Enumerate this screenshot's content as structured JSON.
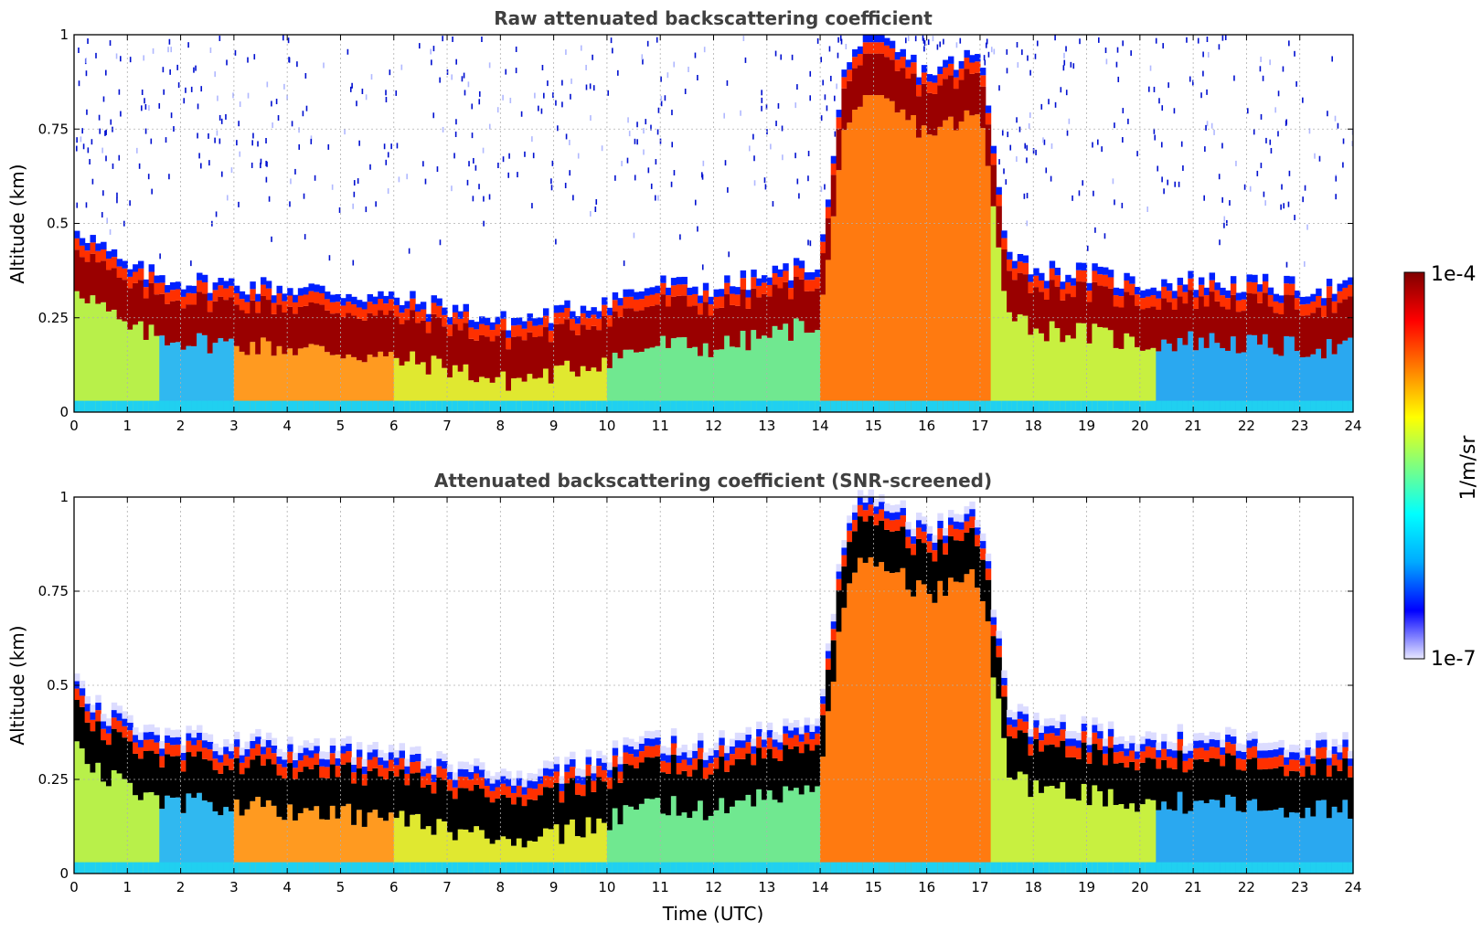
{
  "chart_data": [
    {
      "type": "heatmap",
      "title": "Raw attenuated backscattering coefficient",
      "xlabel": "",
      "ylabel": "Altitude (km)",
      "xlim": [
        0,
        24
      ],
      "ylim": [
        0,
        1
      ],
      "xticks": [
        "0",
        "1",
        "2",
        "3",
        "4",
        "5",
        "6",
        "7",
        "8",
        "9",
        "10",
        "11",
        "12",
        "13",
        "14",
        "15",
        "16",
        "17",
        "18",
        "19",
        "20",
        "21",
        "22",
        "23",
        "24"
      ],
      "yticks": [
        "0",
        "0.25",
        "0.5",
        "0.75",
        "1"
      ],
      "grid": true,
      "screened": false,
      "layer_top_km": [
        {
          "t": 0,
          "h": 0.5
        },
        {
          "t": 0.5,
          "h": 0.44
        },
        {
          "t": 1,
          "h": 0.38
        },
        {
          "t": 2,
          "h": 0.35
        },
        {
          "t": 3,
          "h": 0.34
        },
        {
          "t": 4,
          "h": 0.33
        },
        {
          "t": 5,
          "h": 0.32
        },
        {
          "t": 6,
          "h": 0.3
        },
        {
          "t": 7,
          "h": 0.28
        },
        {
          "t": 8,
          "h": 0.24
        },
        {
          "t": 9,
          "h": 0.26
        },
        {
          "t": 10,
          "h": 0.3
        },
        {
          "t": 11,
          "h": 0.34
        },
        {
          "t": 12,
          "h": 0.33
        },
        {
          "t": 13,
          "h": 0.36
        },
        {
          "t": 14,
          "h": 0.4
        },
        {
          "t": 14.5,
          "h": 0.95
        },
        {
          "t": 15,
          "h": 1.0
        },
        {
          "t": 16,
          "h": 0.9
        },
        {
          "t": 17,
          "h": 0.95
        },
        {
          "t": 17.5,
          "h": 0.45
        },
        {
          "t": 18,
          "h": 0.38
        },
        {
          "t": 19,
          "h": 0.37
        },
        {
          "t": 20,
          "h": 0.34
        },
        {
          "t": 21,
          "h": 0.35
        },
        {
          "t": 22,
          "h": 0.34
        },
        {
          "t": 23,
          "h": 0.33
        },
        {
          "t": 24,
          "h": 0.33
        }
      ]
    },
    {
      "type": "heatmap",
      "title": "Attenuated backscattering coefficient (SNR-screened)",
      "xlabel": "Time (UTC)",
      "ylabel": "Altitude (km)",
      "xlim": [
        0,
        24
      ],
      "ylim": [
        0,
        1
      ],
      "xticks": [
        "0",
        "1",
        "2",
        "3",
        "4",
        "5",
        "6",
        "7",
        "8",
        "9",
        "10",
        "11",
        "12",
        "13",
        "14",
        "15",
        "16",
        "17",
        "18",
        "19",
        "20",
        "21",
        "22",
        "23",
        "24"
      ],
      "yticks": [
        "0",
        "0.25",
        "0.5",
        "0.75",
        "1"
      ],
      "grid": true,
      "screened": true
    }
  ],
  "colorbar": {
    "label": "1/m/sr",
    "max_label": "1e-4",
    "min_label": "1e-7",
    "colors": [
      "#e8e8ff",
      "#0000ff",
      "#00aaff",
      "#00ffff",
      "#7fff7f",
      "#ffff00",
      "#ff8000",
      "#ff0000",
      "#800000"
    ]
  }
}
